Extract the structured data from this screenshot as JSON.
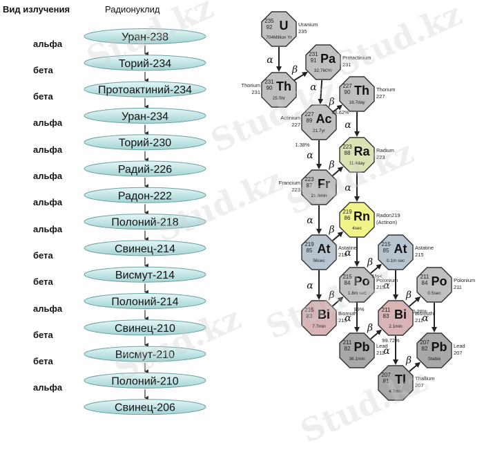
{
  "headers": {
    "radiation_type": "Вид излучения",
    "radionuclide": "Радионуклид"
  },
  "chain": [
    "Уран-238",
    "Торий-234",
    "Протоактиний-234",
    "Уран-234",
    "Торий-230",
    "Радий-226",
    "Радон-222",
    "Полоний-218",
    "Свинец-214",
    "Висмут-214",
    "Полоний-214",
    "Свинец-210",
    "Висмут-210",
    "Полоний-210",
    "Свинец-206"
  ],
  "radiation": [
    "альфа",
    "бета",
    "бета",
    "альфа",
    "альфа",
    "альфа",
    "альфа",
    "альфа",
    "бета",
    "бета",
    "альфа",
    "бета",
    "бета",
    "альфа"
  ],
  "nuclides": [
    {
      "id": "U235",
      "sym": "U",
      "a": "235",
      "z": "92",
      "life": "704Million Yr",
      "name": [
        "Uranium",
        "235"
      ],
      "fill": "#c0c0c0"
    },
    {
      "id": "Pa231",
      "sym": "Pa",
      "a": "231",
      "z": "91",
      "life": "32,760Yr",
      "name": [
        "Protactinium",
        "231"
      ],
      "fill": "#c0c0c0"
    },
    {
      "id": "Th231",
      "sym": "Th",
      "a": "231",
      "z": "90",
      "life": "25.5hr",
      "name": [
        "Thorium",
        "231"
      ],
      "fill": "#c0c0c0"
    },
    {
      "id": "Th227",
      "sym": "Th",
      "a": "227",
      "z": "90",
      "life": "18.7day",
      "name": [
        "Thorium",
        "227"
      ],
      "fill": "#c0c0c0"
    },
    {
      "id": "Ac227",
      "sym": "Ac",
      "a": "227",
      "z": "89",
      "life": "21.7yr",
      "name": [
        "Actinium",
        "227"
      ],
      "fill": "#c0c0c0"
    },
    {
      "id": "Ra223",
      "sym": "Ra",
      "a": "223",
      "z": "88",
      "life": "11.4day",
      "name": [
        "Radium",
        "223"
      ],
      "fill": "#dde2b4"
    },
    {
      "id": "Fr223",
      "sym": "Fr",
      "a": "223",
      "z": "87",
      "life": "21.8min",
      "name": [
        "Francium",
        "223"
      ],
      "fill": "#c0c0c0"
    },
    {
      "id": "Rn219",
      "sym": "Rn",
      "a": "219",
      "z": "86",
      "life": "4sec",
      "name": [
        "Radon219",
        "(Actinon)"
      ],
      "fill": "#f0f58a"
    },
    {
      "id": "At219",
      "sym": "At",
      "a": "219",
      "z": "85",
      "life": "56sec",
      "name": [
        "Astatine",
        "219"
      ],
      "fill": "#b8c5d0"
    },
    {
      "id": "At215",
      "sym": "At",
      "a": "215",
      "z": "85",
      "life": "0.1m sec",
      "name": [
        "Astatine",
        "215"
      ],
      "fill": "#b8c5d0"
    },
    {
      "id": "Po215",
      "sym": "Po",
      "a": "215",
      "z": "84",
      "life": "1.8m sec",
      "name": [
        "Polonium",
        "215"
      ],
      "fill": "#c0c0c0"
    },
    {
      "id": "Po211",
      "sym": "Po",
      "a": "211",
      "z": "84",
      "life": "0.5sec",
      "name": [
        "Polonium",
        "211"
      ],
      "fill": "#c0c0c0"
    },
    {
      "id": "Bi215",
      "sym": "Bi",
      "a": "215",
      "z": "83",
      "life": "7.7min",
      "name": [
        "Bismuth",
        "215"
      ],
      "fill": "#d8b4b6"
    },
    {
      "id": "Bi211",
      "sym": "Bi",
      "a": "211",
      "z": "83",
      "life": "2.1min",
      "name": [
        "Bismuth",
        "211"
      ],
      "fill": "#d8b4b6"
    },
    {
      "id": "Pb211",
      "sym": "Pb",
      "a": "211",
      "z": "82",
      "life": "36.1min",
      "name": [
        "Lead",
        "211"
      ],
      "fill": "#a8a8a8"
    },
    {
      "id": "Pb207",
      "sym": "Pb",
      "a": "207",
      "z": "82",
      "life": "Stable",
      "name": [
        "Lead",
        "207"
      ],
      "fill": "#a8a8a8"
    },
    {
      "id": "Tl207",
      "sym": "Tl",
      "a": "207",
      "z": "81",
      "life": "4.7min",
      "name": [
        "Thallium",
        "207"
      ],
      "fill": "#a8a8a8"
    }
  ],
  "transitions": [
    {
      "from": "U235",
      "to": "Th231",
      "label": "α"
    },
    {
      "from": "Th231",
      "to": "Pa231",
      "label": "β"
    },
    {
      "from": "Pa231",
      "to": "Ac227",
      "label": "α"
    },
    {
      "from": "Ac227",
      "to": "Th227",
      "label": "β"
    },
    {
      "from": "Th227",
      "to": "Ra223",
      "label": "α"
    },
    {
      "from": "Ac227",
      "to": "Fr223",
      "label": "α"
    },
    {
      "from": "Fr223",
      "to": "Ra223",
      "label": "β"
    },
    {
      "from": "Ra223",
      "to": "Rn219",
      "label": "α"
    },
    {
      "from": "Fr223",
      "to": "At219",
      "label": "α"
    },
    {
      "from": "At219",
      "to": "Rn219",
      "label": "β"
    },
    {
      "from": "Rn219",
      "to": "Po215",
      "label": "α"
    },
    {
      "from": "At219",
      "to": "Bi215",
      "label": "α"
    },
    {
      "from": "Bi215",
      "to": "Po215",
      "label": "β"
    },
    {
      "from": "Po215",
      "to": "At215",
      "label": "β"
    },
    {
      "from": "At215",
      "to": "Bi211",
      "label": "α"
    },
    {
      "from": "Po215",
      "to": "Pb211",
      "label": "α"
    },
    {
      "from": "Pb211",
      "to": "Bi211",
      "label": "β"
    },
    {
      "from": "Bi211",
      "to": "Po211",
      "label": "β"
    },
    {
      "from": "Po211",
      "to": "Pb207",
      "label": "α"
    },
    {
      "from": "Bi211",
      "to": "Tl207",
      "label": "α"
    },
    {
      "from": "Tl207",
      "to": "Pb207",
      "label": "β"
    }
  ],
  "branch_percentages": [
    "98.62%",
    "1.38%",
    "1%<",
    "99%",
    "0.28%",
    "99.72%"
  ],
  "watermark": "Stud.kz"
}
